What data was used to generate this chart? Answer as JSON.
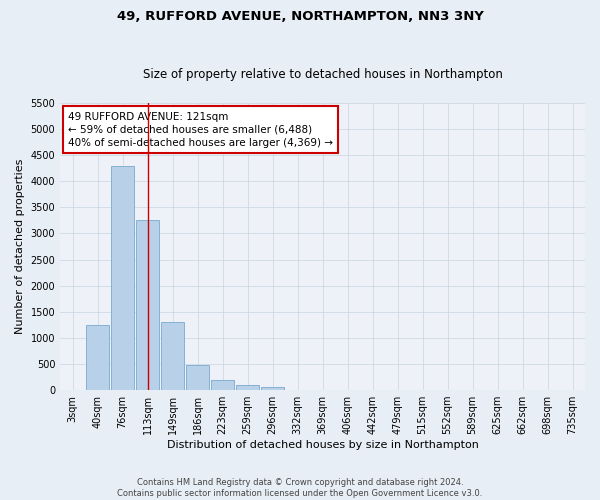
{
  "title": "49, RUFFORD AVENUE, NORTHAMPTON, NN3 3NY",
  "subtitle": "Size of property relative to detached houses in Northampton",
  "xlabel": "Distribution of detached houses by size in Northampton",
  "ylabel": "Number of detached properties",
  "footer_line1": "Contains HM Land Registry data © Crown copyright and database right 2024.",
  "footer_line2": "Contains public sector information licensed under the Open Government Licence v3.0.",
  "categories": [
    "3sqm",
    "40sqm",
    "76sqm",
    "113sqm",
    "149sqm",
    "186sqm",
    "223sqm",
    "259sqm",
    "296sqm",
    "332sqm",
    "369sqm",
    "406sqm",
    "442sqm",
    "479sqm",
    "515sqm",
    "552sqm",
    "589sqm",
    "625sqm",
    "662sqm",
    "698sqm",
    "735sqm"
  ],
  "values": [
    0,
    1250,
    4300,
    3250,
    1300,
    480,
    200,
    100,
    65,
    0,
    0,
    0,
    0,
    0,
    0,
    0,
    0,
    0,
    0,
    0,
    0
  ],
  "bar_color": "#b8d0e8",
  "bar_edge_color": "#7aaacf",
  "grid_color": "#c8d4e0",
  "bg_color": "#e8eef5",
  "plot_bg_color": "#eef2f8",
  "vline_x_index": 3,
  "vline_color": "#cc0000",
  "annotation_line1": "49 RUFFORD AVENUE: 121sqm",
  "annotation_line2": "← 59% of detached houses are smaller (6,488)",
  "annotation_line3": "40% of semi-detached houses are larger (4,369) →",
  "annotation_box_color": "#ffffff",
  "annotation_box_edge": "#cc0000",
  "ylim_max": 5500,
  "ytick_step": 500,
  "title_fontsize": 9.5,
  "subtitle_fontsize": 8.5,
  "ylabel_fontsize": 8,
  "xlabel_fontsize": 8,
  "annot_fontsize": 7.5,
  "tick_fontsize": 7
}
